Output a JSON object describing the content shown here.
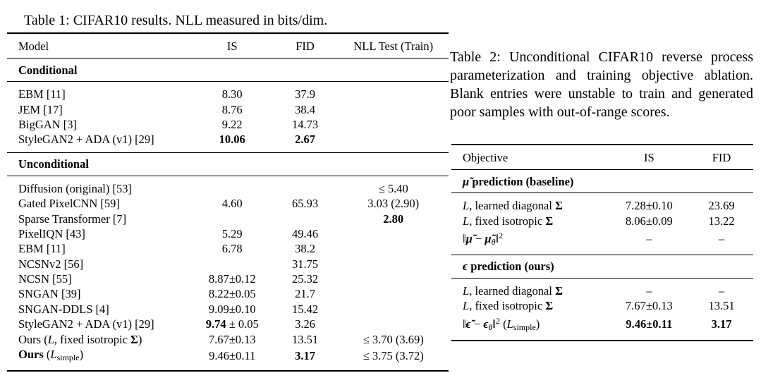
{
  "table1": {
    "caption": "Table 1: CIFAR10 results. NLL measured in bits/dim.",
    "columns": [
      "Model",
      "IS",
      "FID",
      "NLL Test (Train)"
    ],
    "col_widths": [
      "42%",
      "18%",
      "15%",
      "25%"
    ],
    "sections": [
      {
        "title": "Conditional",
        "rows": [
          [
            "EBM [11]",
            "8.30",
            "37.9",
            ""
          ],
          [
            "JEM [17]",
            "8.76",
            "38.4",
            ""
          ],
          [
            "BigGAN [3]",
            "9.22",
            "14.73",
            ""
          ],
          [
            "StyleGAN2 + ADA (v1) [29]",
            [
              {
                "t": "10.06",
                "s": "b"
              }
            ],
            [
              {
                "t": "2.67",
                "s": "b"
              }
            ],
            ""
          ]
        ]
      },
      {
        "title": "Unconditional",
        "rows": [
          [
            "Diffusion (original) [53]",
            "",
            "",
            "≤ 5.40"
          ],
          [
            "Gated PixelCNN [59]",
            "4.60",
            "65.93",
            "3.03 (2.90)"
          ],
          [
            "Sparse Transformer [7]",
            "",
            "",
            [
              {
                "t": "2.80",
                "s": "b"
              }
            ]
          ],
          [
            "PixelIQN [43]",
            "5.29",
            "49.46",
            ""
          ],
          [
            "EBM [11]",
            "6.78",
            "38.2",
            ""
          ],
          [
            "NCSNv2 [56]",
            "",
            "31.75",
            ""
          ],
          [
            "NCSN [55]",
            "8.87±0.12",
            "25.32",
            ""
          ],
          [
            "SNGAN [39]",
            "8.22±0.05",
            "21.7",
            ""
          ],
          [
            "SNGAN-DDLS [4]",
            "9.09±0.10",
            "15.42",
            ""
          ],
          [
            "StyleGAN2 + ADA (v1) [29]",
            [
              {
                "t": "9.74",
                "s": "b"
              },
              {
                "t": " ± 0.05",
                "s": ""
              }
            ],
            "3.26",
            ""
          ],
          [
            [
              {
                "t": "Ours (",
                "s": ""
              },
              {
                "t": "L",
                "s": "i"
              },
              {
                "t": ", fixed isotropic ",
                "s": ""
              },
              {
                "t": "Σ",
                "s": "b"
              },
              {
                "t": ")",
                "s": ""
              }
            ],
            "7.67±0.13",
            "13.51",
            "≤ 3.70 (3.69)"
          ],
          [
            [
              {
                "t": "Ours",
                "s": "b"
              },
              {
                "t": " (",
                "s": ""
              },
              {
                "t": "L",
                "s": "i"
              },
              {
                "t": "simple",
                "s": "sub"
              },
              {
                "t": ")",
                "s": ""
              }
            ],
            "9.46±0.11",
            [
              {
                "t": "3.17",
                "s": "b"
              }
            ],
            "≤ 3.75 (3.72)"
          ]
        ]
      }
    ]
  },
  "table2": {
    "caption": "Table 2: Unconditional CIFAR10 reverse process parameterization and training objective ablation. Blank entries were unstable to train and generated poor samples with out-of-range scores.",
    "columns": [
      "Objective",
      "IS",
      "FID"
    ],
    "col_widths": [
      "52%",
      "27%",
      "21%"
    ],
    "sections": [
      {
        "title": [
          {
            "t": "μ̃",
            "s": "bi"
          },
          {
            "t": " prediction (baseline)",
            "s": "b"
          }
        ],
        "rows": [
          [
            [
              {
                "t": "L",
                "s": "i"
              },
              {
                "t": ", learned diagonal ",
                "s": ""
              },
              {
                "t": "Σ",
                "s": "b"
              }
            ],
            "7.28±0.10",
            "23.69"
          ],
          [
            [
              {
                "t": "L",
                "s": "i"
              },
              {
                "t": ", fixed isotropic ",
                "s": ""
              },
              {
                "t": "Σ",
                "s": "b"
              }
            ],
            "8.06±0.09",
            "13.22"
          ],
          [
            [
              {
                "t": "‖",
                "s": ""
              },
              {
                "t": "μ̃",
                "s": "bi"
              },
              {
                "t": " − ",
                "s": ""
              },
              {
                "t": "μ̃",
                "s": "bi"
              },
              {
                "t": "θ",
                "s": "bi-sub"
              },
              {
                "t": "‖",
                "s": ""
              },
              {
                "t": "2",
                "s": "sup"
              }
            ],
            "–",
            "–"
          ]
        ]
      },
      {
        "title": [
          {
            "t": "ϵ",
            "s": "bi"
          },
          {
            "t": " prediction (ours)",
            "s": "b"
          }
        ],
        "rows": [
          [
            [
              {
                "t": "L",
                "s": "i"
              },
              {
                "t": ", learned diagonal ",
                "s": ""
              },
              {
                "t": "Σ",
                "s": "b"
              }
            ],
            "–",
            "–"
          ],
          [
            [
              {
                "t": "L",
                "s": "i"
              },
              {
                "t": ", fixed isotropic ",
                "s": ""
              },
              {
                "t": "Σ",
                "s": "b"
              }
            ],
            "7.67±0.13",
            "13.51"
          ],
          [
            [
              {
                "t": "‖",
                "s": ""
              },
              {
                "t": "ϵ̃",
                "s": "bi"
              },
              {
                "t": " − ",
                "s": ""
              },
              {
                "t": "ϵ",
                "s": "bi"
              },
              {
                "t": "θ",
                "s": "bi-sub"
              },
              {
                "t": "‖",
                "s": ""
              },
              {
                "t": "2",
                "s": "sup"
              },
              {
                "t": " (",
                "s": ""
              },
              {
                "t": "L",
                "s": "i"
              },
              {
                "t": "simple",
                "s": "sub"
              },
              {
                "t": ")",
                "s": ""
              }
            ],
            [
              {
                "t": "9.46±0.11",
                "s": "b"
              }
            ],
            [
              {
                "t": "3.17",
                "s": "b"
              }
            ]
          ]
        ]
      }
    ]
  }
}
